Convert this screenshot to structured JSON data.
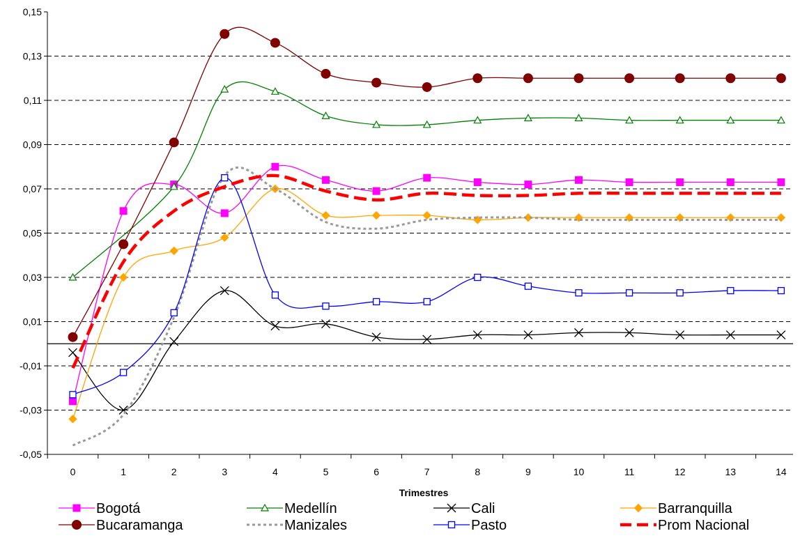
{
  "chart_data": {
    "type": "line",
    "title": "",
    "xlabel": "Trimestres",
    "ylabel": "",
    "x": [
      0,
      1,
      2,
      3,
      4,
      5,
      6,
      7,
      8,
      9,
      10,
      11,
      12,
      13,
      14
    ],
    "xticks": [
      "0",
      "1",
      "2",
      "3",
      "4",
      "5",
      "6",
      "7",
      "8",
      "9",
      "10",
      "11",
      "12",
      "13",
      "14"
    ],
    "yticks": [
      "0,15",
      "0,13",
      "0,11",
      "0,09",
      "0,07",
      "0,05",
      "0,03",
      "0,01",
      "-0,01",
      "-0,03",
      "-0,05"
    ],
    "ylim": [
      -0.05,
      0.15
    ],
    "grid": "horizontal-dashed",
    "legend_position": "bottom",
    "series": [
      {
        "name": "Bogotá",
        "color": "#ff00ff",
        "marker": "square-filled",
        "style": "solid",
        "values": [
          -0.026,
          0.06,
          0.072,
          0.059,
          0.08,
          0.074,
          0.069,
          0.075,
          0.073,
          0.072,
          0.074,
          0.073,
          0.073,
          0.073,
          0.073
        ]
      },
      {
        "name": "Medellín",
        "color": "#008000",
        "marker": "triangle-open",
        "style": "solid",
        "values": [
          0.03,
          null,
          0.071,
          0.115,
          0.114,
          0.103,
          0.099,
          0.099,
          0.101,
          0.102,
          0.102,
          0.101,
          0.101,
          0.101,
          0.101
        ]
      },
      {
        "name": "Cali",
        "color": "#000000",
        "marker": "x",
        "style": "solid",
        "values": [
          -0.004,
          -0.03,
          0.001,
          0.024,
          0.008,
          0.009,
          0.003,
          0.002,
          0.004,
          0.004,
          0.005,
          0.005,
          0.004,
          0.004,
          0.004
        ]
      },
      {
        "name": "Barranquilla",
        "color": "#ffa500",
        "marker": "diamond-filled",
        "style": "solid",
        "values": [
          -0.034,
          0.03,
          0.042,
          0.048,
          0.07,
          0.058,
          0.058,
          0.058,
          0.056,
          0.057,
          0.057,
          0.057,
          0.057,
          0.057,
          0.057
        ]
      },
      {
        "name": "Bucaramanga",
        "color": "#800000",
        "marker": "circle-filled",
        "style": "solid",
        "values": [
          0.003,
          0.045,
          0.091,
          0.14,
          0.136,
          0.122,
          0.118,
          0.116,
          0.12,
          0.12,
          0.12,
          0.12,
          0.12,
          0.12,
          0.12
        ]
      },
      {
        "name": "Manizales",
        "color": "#999999",
        "marker": "none",
        "style": "dotted",
        "values": [
          -0.046,
          -0.032,
          0.012,
          0.076,
          0.07,
          0.055,
          0.052,
          0.056,
          0.057,
          0.057,
          0.056,
          0.056,
          0.056,
          0.056,
          0.056
        ]
      },
      {
        "name": "Pasto",
        "color": "#0000ff",
        "marker": "square-open",
        "style": "solid",
        "values": [
          -0.023,
          -0.013,
          0.014,
          0.075,
          0.022,
          0.017,
          0.019,
          0.019,
          0.03,
          0.026,
          0.023,
          0.023,
          0.023,
          0.024,
          0.024
        ]
      },
      {
        "name": "Prom Nacional",
        "color": "#ff0000",
        "marker": "none",
        "style": "dashed-thick",
        "values": [
          -0.011,
          0.037,
          0.06,
          0.071,
          0.076,
          0.069,
          0.065,
          0.068,
          0.067,
          0.067,
          0.068,
          0.068,
          0.068,
          0.068,
          0.068
        ]
      }
    ]
  }
}
